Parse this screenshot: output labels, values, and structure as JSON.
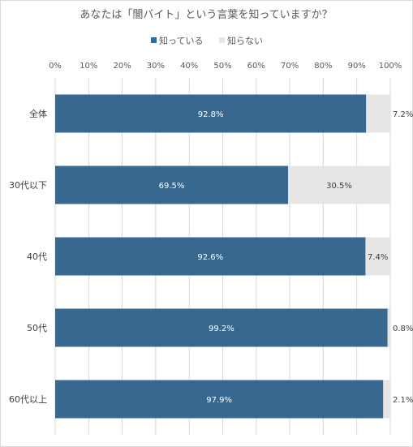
{
  "chart_data": {
    "type": "bar",
    "orientation": "horizontal",
    "stacked": true,
    "title": "あなたは「闇バイト」という言葉を知っていますか？",
    "categories": [
      "全体",
      "30代以下",
      "40代",
      "50代",
      "60代以上"
    ],
    "series": [
      {
        "name": "知っている",
        "values": [
          92.8,
          69.5,
          92.6,
          99.2,
          97.9
        ],
        "labels": [
          "92.8%",
          "69.5%",
          "92.6%",
          "99.2%",
          "97.9%"
        ],
        "color": "#386890"
      },
      {
        "name": "知らない",
        "values": [
          7.2,
          30.5,
          7.4,
          0.8,
          2.1
        ],
        "labels": [
          "7.2%",
          "30.5%",
          "7.4%",
          "0.8%",
          "2.1%"
        ],
        "color": "#e6e6e6"
      }
    ],
    "xlim": [
      0,
      100
    ],
    "x_ticks": [
      "0%",
      "10%",
      "20%",
      "30%",
      "40%",
      "50%",
      "60%",
      "70%",
      "80%",
      "90%",
      "100%"
    ],
    "grid": true,
    "legend_position": "top"
  }
}
